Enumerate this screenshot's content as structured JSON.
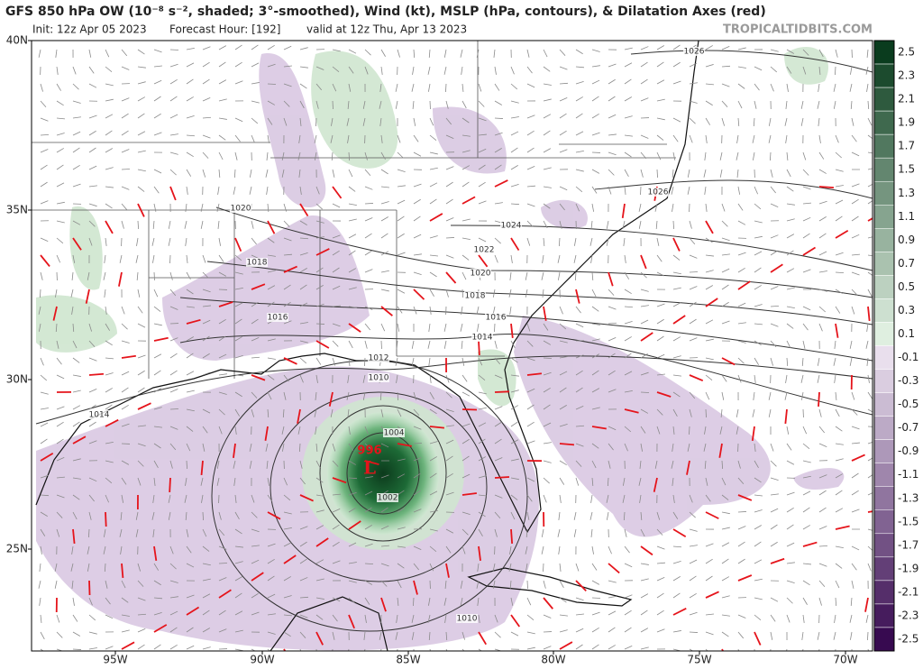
{
  "header": {
    "title": "GFS 850 hPa OW (10⁻⁸ s⁻², shaded; 3°-smoothed), Wind (kt), MSLP (hPa, contours), & Dilatation Axes (red)",
    "init": "Init: 12z Apr 05 2023",
    "forecast_hour": "Forecast Hour: [192]",
    "valid": "valid at 12z Thu, Apr 13 2023",
    "watermark": "TROPICALTIDBITS.COM"
  },
  "map": {
    "lat_labels": [
      "40N",
      "35N",
      "30N",
      "25N"
    ],
    "lon_labels": [
      "95W",
      "90W",
      "85W",
      "80W",
      "75W",
      "70W"
    ],
    "contour_labels": [
      1026,
      1026,
      1024,
      1022,
      1020,
      1020,
      1018,
      1018,
      1016,
      1016,
      1014,
      1012,
      1010,
      1014,
      1004,
      1002,
      1010
    ],
    "low_pressure": 996,
    "low_symbol": "L"
  },
  "colorbar": {
    "ticks": [
      2.5,
      2.3,
      2.1,
      1.9,
      1.7,
      1.5,
      1.3,
      1.1,
      0.9,
      0.7,
      0.5,
      0.3,
      0.1,
      -0.1,
      -0.3,
      -0.5,
      -0.7,
      -0.9,
      -1.1,
      -1.3,
      -1.5,
      -1.7,
      -1.9,
      -2.1,
      -2.3,
      -2.5
    ]
  }
}
